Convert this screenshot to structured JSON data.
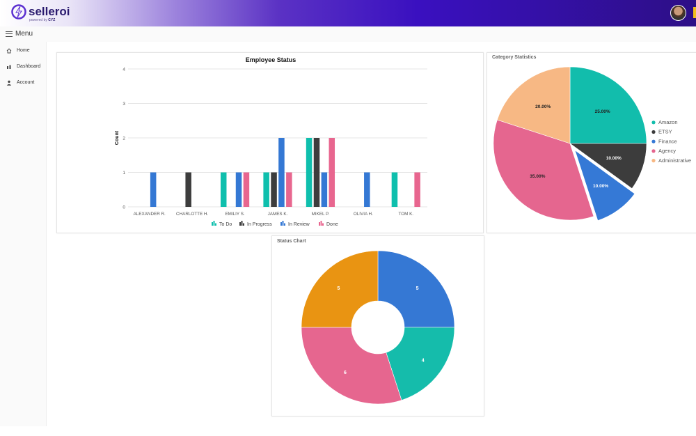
{
  "app": {
    "logo_text": "selleroi",
    "logo_sub_prefix": "powered by",
    "logo_sub_brand": "CYZ",
    "brand_color": "#3a10c0"
  },
  "menu": {
    "label": "Menu",
    "icon": "hamburger-icon"
  },
  "sidebar": {
    "items": [
      {
        "label": "Home",
        "icon": "home-icon"
      },
      {
        "label": "Dashboard",
        "icon": "bar-chart-icon"
      },
      {
        "label": "Account",
        "icon": "user-icon"
      }
    ]
  },
  "chart_data": [
    {
      "type": "bar",
      "title": "Employee Status",
      "ylabel": "Count",
      "xlabel": "",
      "ylim": [
        0,
        4
      ],
      "yticks": [
        0,
        1,
        2,
        3,
        4
      ],
      "grid": true,
      "legend": "bottom",
      "categories": [
        "ALEXANDER R.",
        "CHARLOTTE H.",
        "EMILIY S.",
        "JAMES K.",
        "MIKEL P.",
        "OLIVIA H.",
        "TOM K."
      ],
      "series": [
        {
          "name": "To Do",
          "color": "#0fbfad",
          "values": [
            0,
            0,
            1,
            1,
            2,
            0,
            1
          ]
        },
        {
          "name": "In Progress",
          "color": "#3d3d3d",
          "values": [
            0,
            1,
            0,
            1,
            2,
            0,
            0
          ]
        },
        {
          "name": "In Review",
          "color": "#3478d4",
          "values": [
            1,
            0,
            1,
            2,
            1,
            1,
            0
          ]
        },
        {
          "name": "Done",
          "color": "#e8668f",
          "values": [
            0,
            0,
            1,
            1,
            2,
            0,
            1
          ]
        }
      ]
    },
    {
      "type": "pie",
      "title": "Category Statistics",
      "legend": "right",
      "slices": [
        {
          "name": "Amazon",
          "value": 25,
          "label": "25.00%",
          "color": "#12bdac",
          "exploded": false
        },
        {
          "name": "ETSY",
          "value": 10,
          "label": "10.00%",
          "color": "#3c3c3c",
          "exploded": false
        },
        {
          "name": "Finance",
          "value": 10,
          "label": "10.00%",
          "color": "#3579d6",
          "exploded": true
        },
        {
          "name": "Agency",
          "value": 35,
          "label": "35.00%",
          "color": "#e5668f",
          "exploded": false
        },
        {
          "name": "Administrative",
          "value": 20,
          "label": "20.00%",
          "color": "#f7b884",
          "exploded": false
        }
      ]
    },
    {
      "type": "pie",
      "subtype": "donut",
      "title": "Status Chart",
      "slices": [
        {
          "value": 5,
          "label": "5",
          "color": "#3578d4"
        },
        {
          "value": 4,
          "label": "4",
          "color": "#15bcab"
        },
        {
          "value": 6,
          "label": "6",
          "color": "#e6668f"
        },
        {
          "value": 5,
          "label": "5",
          "color": "#e99412"
        }
      ]
    }
  ]
}
